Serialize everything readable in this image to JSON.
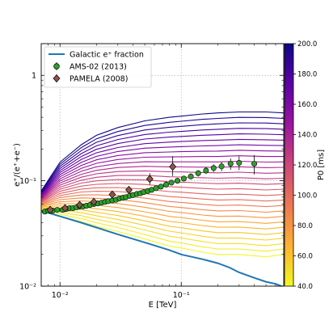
{
  "chart_data": {
    "type": "line",
    "xlabel": "E [TeV]",
    "ylabel": "e⁺/(e⁺+e⁻)",
    "xscale": "log",
    "yscale": "log",
    "xlim": [
      0.007,
      0.7
    ],
    "ylim": [
      0.01,
      2.0
    ],
    "grid": true,
    "legend_placement": "upper-left",
    "x_ticks": [
      {
        "v": 0.01,
        "label": "10⁻²"
      },
      {
        "v": 0.1,
        "label": "10⁻¹"
      }
    ],
    "y_ticks": [
      {
        "v": 0.01,
        "label": "10⁻²"
      },
      {
        "v": 0.1,
        "label": "10⁻¹"
      },
      {
        "v": 1,
        "label": "1"
      }
    ],
    "legend": [
      {
        "label": "Galactic e⁺ fraction",
        "kind": "line",
        "color": "#1f77b4"
      },
      {
        "label": "AMS-02 (2013)",
        "kind": "circle",
        "color": "#2ca02c"
      },
      {
        "label": "PAMELA (2008)",
        "kind": "diamond",
        "color": "#8c564b"
      }
    ],
    "galactic_fraction": {
      "name": "Galactic e⁺ fraction",
      "x": [
        0.007,
        0.01,
        0.015,
        0.02,
        0.03,
        0.05,
        0.08,
        0.1,
        0.15,
        0.2,
        0.25,
        0.3,
        0.4,
        0.5,
        0.6,
        0.7
      ],
      "y": [
        0.052,
        0.046,
        0.04,
        0.036,
        0.031,
        0.026,
        0.022,
        0.02,
        0.018,
        0.0165,
        0.015,
        0.0135,
        0.012,
        0.011,
        0.0105,
        0.0098
      ]
    },
    "model_curves": {
      "p0_ms": [
        40,
        44.8,
        50,
        55.2,
        60,
        66.4,
        72.8,
        79.2,
        85.6,
        92,
        98.4,
        104.8,
        111.2,
        117.6,
        124,
        130.4,
        136.8,
        143.2,
        149.6,
        156,
        162.4,
        168.8,
        175.2,
        181.6,
        188,
        194.4,
        200
      ],
      "x": [
        0.007,
        0.01,
        0.015,
        0.02,
        0.03,
        0.05,
        0.08,
        0.1,
        0.15,
        0.2,
        0.3,
        0.5,
        0.7
      ],
      "min_curve_y": [
        0.052,
        0.046,
        0.041,
        0.037,
        0.033,
        0.028,
        0.024,
        0.023,
        0.021,
        0.02,
        0.02,
        0.019,
        0.02
      ],
      "max_curve_y": [
        0.08,
        0.15,
        0.22,
        0.27,
        0.32,
        0.37,
        0.4,
        0.41,
        0.43,
        0.44,
        0.45,
        0.45,
        0.44
      ]
    },
    "ams02_2013": {
      "name": "AMS-02 (2013)",
      "x": [
        0.0075,
        0.008,
        0.0087,
        0.0095,
        0.0105,
        0.0113,
        0.012,
        0.0128,
        0.0137,
        0.0146,
        0.0155,
        0.0165,
        0.0177,
        0.019,
        0.0205,
        0.022,
        0.0235,
        0.025,
        0.027,
        0.029,
        0.031,
        0.033,
        0.035,
        0.0375,
        0.04,
        0.043,
        0.046,
        0.049,
        0.053,
        0.057,
        0.062,
        0.068,
        0.075,
        0.083,
        0.093,
        0.105,
        0.12,
        0.138,
        0.16,
        0.185,
        0.215,
        0.255,
        0.3,
        0.4
      ],
      "y": [
        0.051,
        0.052,
        0.052,
        0.053,
        0.053,
        0.054,
        0.055,
        0.055,
        0.056,
        0.057,
        0.057,
        0.058,
        0.059,
        0.06,
        0.061,
        0.062,
        0.063,
        0.064,
        0.065,
        0.066,
        0.068,
        0.069,
        0.07,
        0.072,
        0.073,
        0.075,
        0.076,
        0.078,
        0.08,
        0.082,
        0.085,
        0.088,
        0.092,
        0.096,
        0.1,
        0.105,
        0.11,
        0.118,
        0.125,
        0.132,
        0.137,
        0.145,
        0.148,
        0.145
      ],
      "err_low": [
        0.002,
        0.002,
        0.002,
        0.002,
        0.002,
        0.002,
        0.002,
        0.002,
        0.002,
        0.002,
        0.002,
        0.002,
        0.002,
        0.002,
        0.002,
        0.002,
        0.002,
        0.002,
        0.002,
        0.002,
        0.002,
        0.002,
        0.003,
        0.003,
        0.003,
        0.003,
        0.003,
        0.003,
        0.003,
        0.003,
        0.004,
        0.004,
        0.004,
        0.005,
        0.005,
        0.006,
        0.007,
        0.008,
        0.009,
        0.011,
        0.014,
        0.018,
        0.022,
        0.03
      ],
      "err_high": [
        0.002,
        0.002,
        0.002,
        0.002,
        0.002,
        0.002,
        0.002,
        0.002,
        0.002,
        0.002,
        0.002,
        0.002,
        0.002,
        0.002,
        0.002,
        0.002,
        0.002,
        0.002,
        0.002,
        0.002,
        0.002,
        0.002,
        0.003,
        0.003,
        0.003,
        0.003,
        0.003,
        0.003,
        0.003,
        0.003,
        0.004,
        0.004,
        0.004,
        0.005,
        0.005,
        0.006,
        0.007,
        0.008,
        0.009,
        0.011,
        0.014,
        0.018,
        0.022,
        0.03
      ]
    },
    "pamela_2008": {
      "name": "PAMELA (2008)",
      "x": [
        0.0083,
        0.011,
        0.0145,
        0.019,
        0.027,
        0.037,
        0.055,
        0.085
      ],
      "y": [
        0.053,
        0.055,
        0.059,
        0.063,
        0.074,
        0.082,
        0.104,
        0.136
      ],
      "err_low": [
        0.003,
        0.003,
        0.003,
        0.004,
        0.004,
        0.006,
        0.012,
        0.025
      ],
      "err_high": [
        0.003,
        0.003,
        0.003,
        0.004,
        0.004,
        0.006,
        0.014,
        0.035
      ]
    },
    "colorbar": {
      "label": "P0 [ms]",
      "min": 40,
      "max": 200,
      "ticks": [
        "40.0",
        "60.0",
        "80.0",
        "100.0",
        "120.0",
        "140.0",
        "160.0",
        "180.0",
        "200.0"
      ],
      "colormap": "plasma-reversed",
      "colors": [
        "#f0f921",
        "#fdb42f",
        "#ed7953",
        "#cc4778",
        "#9c179e",
        "#5c01a6",
        "#0d0887"
      ]
    }
  }
}
